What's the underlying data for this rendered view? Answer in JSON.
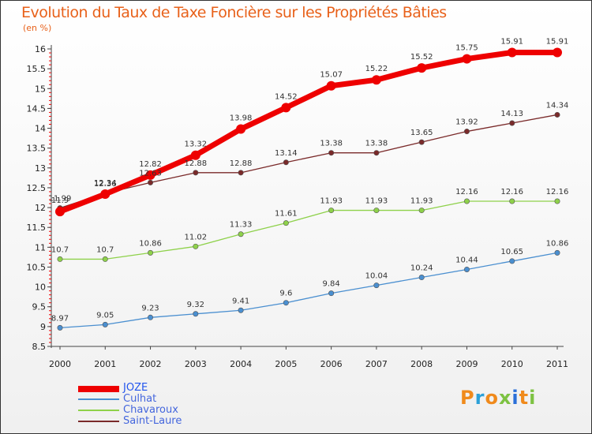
{
  "title": "Evolution du Taux de Taxe Foncière sur les Propriétés Bâties",
  "unit_label": "(en %)",
  "logo": {
    "letters": [
      "P",
      "r",
      "o",
      "x",
      "i",
      "t",
      "i"
    ],
    "colors": [
      "#f08a1c",
      "#2ba0d8",
      "#f08a1c",
      "#7dc242",
      "#2b6fd8",
      "#f08a1c",
      "#7dc242"
    ]
  },
  "chart_data": {
    "type": "line",
    "title": "Evolution du Taux de Taxe Foncière sur les Propriétés Bâties",
    "xlabel": "",
    "ylabel": "(en %)",
    "x": [
      "2000",
      "2001",
      "2002",
      "2003",
      "2004",
      "2005",
      "2006",
      "2007",
      "2008",
      "2009",
      "2010",
      "2011"
    ],
    "ylim": [
      8.5,
      16
    ],
    "yticks": [
      "8.5",
      "9",
      "9.5",
      "10",
      "10.5",
      "11",
      "11.5",
      "12",
      "12.5",
      "13",
      "13.5",
      "14",
      "14.5",
      "15",
      "15.5",
      "16"
    ],
    "grid": false,
    "legend": "bottom-left",
    "series": [
      {
        "name": "JOZE",
        "color": "#ee0000",
        "values": [
          11.9,
          12.34,
          12.82,
          13.32,
          13.98,
          14.52,
          15.07,
          15.22,
          15.52,
          15.75,
          15.91,
          15.91
        ],
        "labels": [
          "11.9",
          "12.34",
          "12.82",
          "13.32",
          "13.98",
          "14.52",
          "15.07",
          "15.22",
          "15.52",
          "15.75",
          "15.91",
          "15.91"
        ]
      },
      {
        "name": "Culhat",
        "color": "#4a8fd0",
        "values": [
          8.97,
          9.05,
          9.23,
          9.32,
          9.41,
          9.6,
          9.84,
          10.04,
          10.24,
          10.44,
          10.65,
          10.86
        ],
        "labels": [
          "8.97",
          "9.05",
          "9.23",
          "9.32",
          "9.41",
          "9.6",
          "9.84",
          "10.04",
          "10.24",
          "10.44",
          "10.65",
          "10.86"
        ]
      },
      {
        "name": "Chavaroux",
        "color": "#8ed14a",
        "values": [
          10.7,
          10.7,
          10.86,
          11.02,
          11.33,
          11.61,
          11.93,
          11.93,
          11.93,
          12.16,
          12.16,
          12.16
        ],
        "labels": [
          "10.7",
          "10.7",
          "10.86",
          "11.02",
          "11.33",
          "11.61",
          "11.93",
          "11.93",
          "11.93",
          "12.16",
          "12.16",
          "12.16"
        ]
      },
      {
        "name": "Saint-Laure",
        "color": "#7a2a2a",
        "values": [
          11.99,
          12.36,
          12.63,
          12.88,
          12.88,
          13.14,
          13.38,
          13.38,
          13.65,
          13.92,
          14.13,
          14.34
        ],
        "labels": [
          "11.99",
          "12.36",
          "12.63",
          "12.88",
          "12.88",
          "13.14",
          "13.38",
          "13.38",
          "13.65",
          "13.92",
          "14.13",
          "14.34"
        ]
      }
    ]
  }
}
